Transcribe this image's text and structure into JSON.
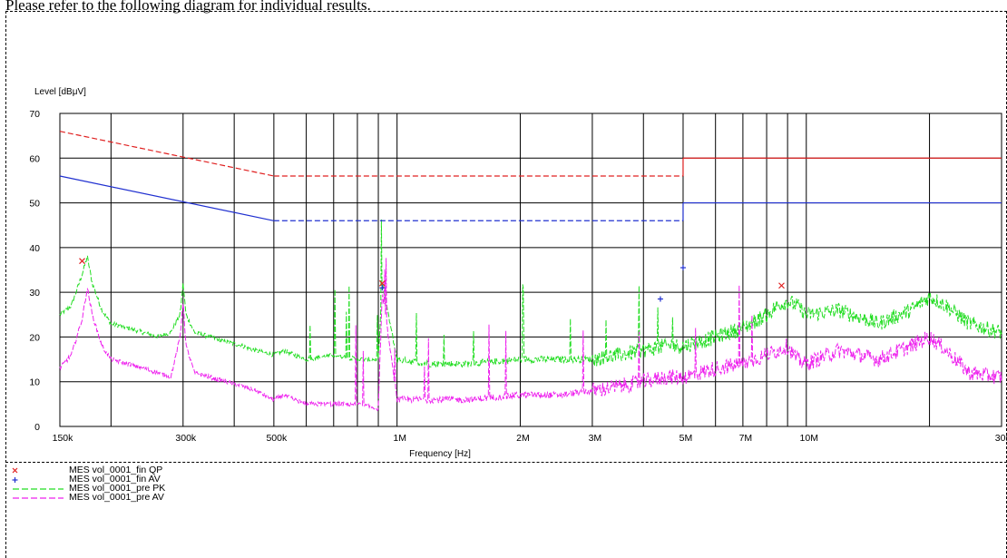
{
  "caption": "Please refer to the following diagram for individual results.",
  "chart_data": {
    "type": "line",
    "ylabel": "Level [dBμV]",
    "xlabel": "Frequency [Hz]",
    "x_scale": "log",
    "xlim": [
      150000,
      30000000
    ],
    "ylim": [
      0,
      70
    ],
    "y_ticks": [
      0,
      10,
      20,
      30,
      40,
      50,
      60,
      70
    ],
    "x_ticks": [
      {
        "value": 150000,
        "label": "150k"
      },
      {
        "value": 300000,
        "label": "300k"
      },
      {
        "value": 500000,
        "label": "500k"
      },
      {
        "value": 1000000,
        "label": "1M"
      },
      {
        "value": 2000000,
        "label": "2M"
      },
      {
        "value": 3000000,
        "label": "3M"
      },
      {
        "value": 5000000,
        "label": "5M"
      },
      {
        "value": 7000000,
        "label": "7M"
      },
      {
        "value": 10000000,
        "label": "10M"
      },
      {
        "value": 30000000,
        "label": "30M"
      }
    ],
    "grid_lines_x": [
      150000,
      200000,
      300000,
      400000,
      500000,
      600000,
      700000,
      800000,
      900000,
      1000000,
      2000000,
      3000000,
      4000000,
      5000000,
      6000000,
      7000000,
      8000000,
      9000000,
      10000000,
      20000000,
      30000000
    ],
    "grid": true,
    "limit_lines": [
      {
        "color": "#e02020",
        "style": "dashed",
        "x": [
          150000,
          500000
        ],
        "y": [
          66,
          56
        ]
      },
      {
        "color": "#e02020",
        "style": "dashed",
        "x": [
          500000,
          5000000
        ],
        "y": [
          56,
          56
        ]
      },
      {
        "color": "#e02020",
        "style": "solid",
        "x": [
          5000000,
          30000000
        ],
        "y": [
          60,
          60
        ]
      },
      {
        "color": "#2030d0",
        "style": "solid",
        "x": [
          150000,
          500000
        ],
        "y": [
          56,
          46
        ]
      },
      {
        "color": "#2030d0",
        "style": "dashed",
        "x": [
          500000,
          5000000
        ],
        "y": [
          46,
          46
        ]
      },
      {
        "color": "#2030d0",
        "style": "solid",
        "x": [
          5000000,
          30000000
        ],
        "y": [
          50,
          50
        ]
      }
    ],
    "series": [
      {
        "name": "MES vol_0001_pre PK",
        "color": "#22dd22",
        "x": [
          150000,
          160000,
          170000,
          175000,
          180000,
          190000,
          200000,
          220000,
          240000,
          260000,
          280000,
          295000,
          300000,
          305000,
          320000,
          350000,
          380000,
          420000,
          450000,
          500000,
          530000,
          560000,
          600000,
          700000,
          800000,
          900000,
          920000,
          1000000,
          1200000,
          1500000,
          2000000,
          2500000,
          3000000,
          3500000,
          4000000,
          4500000,
          5000000,
          5500000,
          6000000,
          7000000,
          8000000,
          8500000,
          9000000,
          9500000,
          10000000,
          12000000,
          15000000,
          18000000,
          20000000,
          22000000,
          25000000,
          30000000
        ],
        "y": [
          25,
          27,
          34,
          38,
          32,
          26,
          23,
          22,
          21,
          20,
          21,
          25,
          32,
          25,
          21,
          20,
          19,
          18,
          17,
          16,
          17,
          16,
          15,
          16,
          15,
          15,
          32,
          15,
          14,
          14,
          15,
          15,
          15,
          16,
          17,
          18,
          18,
          19,
          20,
          22,
          25,
          27,
          28,
          27,
          25,
          26,
          23,
          26,
          29,
          27,
          23,
          21
        ]
      },
      {
        "name": "MES vol_0001_pre AV",
        "color": "#ee22ee",
        "x": [
          150000,
          160000,
          170000,
          175000,
          180000,
          190000,
          200000,
          220000,
          240000,
          260000,
          280000,
          295000,
          300000,
          305000,
          320000,
          350000,
          380000,
          420000,
          450000,
          500000,
          530000,
          560000,
          600000,
          700000,
          800000,
          900000,
          920000,
          1000000,
          1200000,
          1500000,
          2000000,
          2500000,
          3000000,
          3500000,
          4000000,
          4500000,
          5000000,
          5500000,
          6000000,
          7000000,
          8000000,
          8500000,
          9000000,
          9500000,
          10000000,
          12000000,
          15000000,
          18000000,
          20000000,
          22000000,
          25000000,
          30000000
        ],
        "y": [
          13,
          16,
          24,
          31,
          25,
          18,
          15,
          14,
          13,
          12,
          11,
          20,
          28,
          18,
          12,
          11,
          10,
          9,
          8,
          6,
          7,
          6,
          5,
          5,
          5,
          4,
          30,
          6,
          6,
          6,
          7,
          7,
          8,
          9,
          10,
          11,
          11,
          12,
          13,
          14,
          16,
          17,
          18,
          15,
          14,
          17,
          15,
          18,
          20,
          17,
          12,
          11
        ]
      }
    ],
    "markers": [
      {
        "name": "MES vol_0001_fin QP",
        "symbol": "x",
        "color": "#e02020",
        "points": [
          {
            "x": 170000,
            "y": 37
          },
          {
            "x": 920000,
            "y": 32
          },
          {
            "x": 8700000,
            "y": 31.5
          }
        ]
      },
      {
        "name": "MES vol_0001_fin AV",
        "symbol": "+",
        "color": "#2030d0",
        "points": [
          {
            "x": 920000,
            "y": 31
          },
          {
            "x": 4400000,
            "y": 28.5
          },
          {
            "x": 5000000,
            "y": 35.5
          }
        ]
      }
    ]
  },
  "legend": [
    {
      "label": "MES vol_0001_fin QP",
      "symbol": "x",
      "color": "#e02020"
    },
    {
      "label": "MES vol_0001_fin AV",
      "symbol": "+",
      "color": "#2030d0"
    },
    {
      "label": "MES vol_0001_pre PK",
      "symbol": "dashed-line",
      "color": "#22dd22"
    },
    {
      "label": "MES vol_0001_pre AV",
      "symbol": "dashed-line",
      "color": "#ee22ee"
    }
  ]
}
